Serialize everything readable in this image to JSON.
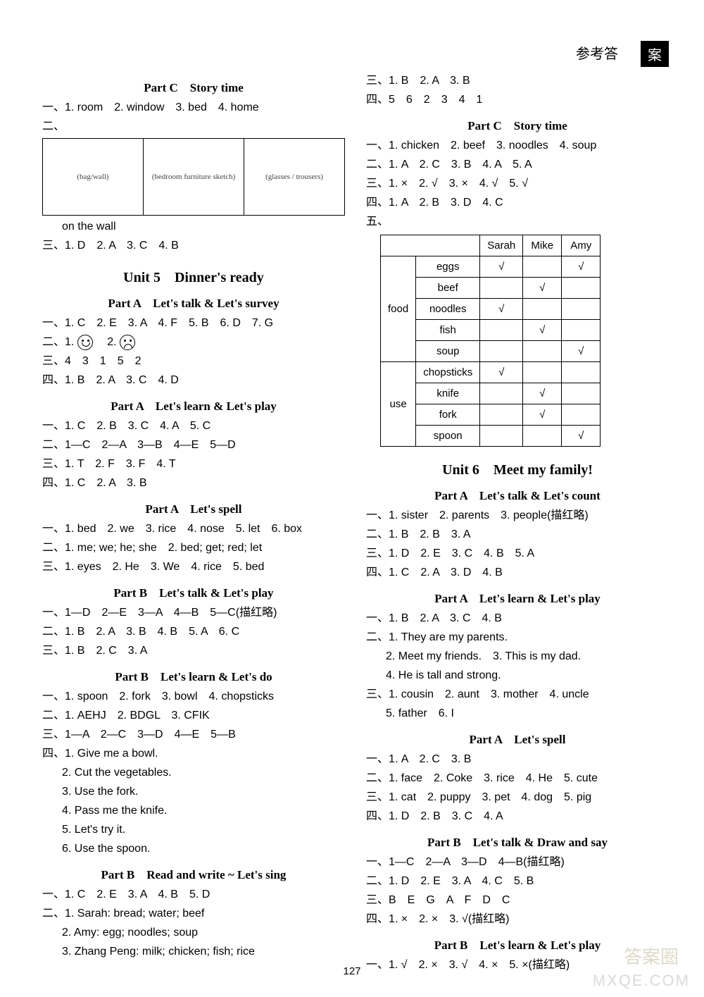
{
  "header": {
    "prefix": "参考答",
    "boxed": "案"
  },
  "page_number": "127",
  "watermark1": "MXQE.COM",
  "watermark2": "答案圈",
  "left": {
    "s1_heading": "Part C　Story time",
    "s1_l1": "一、1. room　2. window　3. bed　4. home",
    "s1_l2": "二、",
    "s1_img_cells": [
      "(bag/wall)",
      "(bedroom furniture sketch)",
      "(glasses / trousers)"
    ],
    "s1_caption": "on the wall",
    "s1_l3": "三、1. D　2. A　3. C　4. B",
    "u5_heading": "Unit 5　Dinner's ready",
    "pa1_heading": "Part A　Let's talk & Let's survey",
    "pa1_l1": "一、1. C　2. E　3. A　4. F　5. B　6. D　7. G",
    "pa1_l2a": "二、1. ",
    "pa1_l2b": "　2. ",
    "pa1_l3": "三、4　3　1　5　2",
    "pa1_l4": "四、1. B　2. A　3. C　4. D",
    "pa2_heading": "Part A　Let's learn & Let's play",
    "pa2_l1": "一、1. C　2. B　3. C　4. A　5. C",
    "pa2_l2": "二、1—C　2—A　3—B　4—E　5—D",
    "pa2_l3": "三、1. T　2. F　3. F　4. T",
    "pa2_l4": "四、1. C　2. A　3. B",
    "pa3_heading": "Part A　Let's spell",
    "pa3_l1": "一、1. bed　2. we　3. rice　4. nose　5. let　6. box",
    "pa3_l2": "二、1. me; we; he; she　2. bed; get; red; let",
    "pa3_l3": "三、1. eyes　2. He　3. We　4. rice　5. bed",
    "pb1_heading": "Part B　Let's talk & Let's play",
    "pb1_l1": "一、1—D　2—E　3—A　4—B　5—C(描红略)",
    "pb1_l2": "二、1. B　2. A　3. B　4. B　5. A　6. C",
    "pb1_l3": "三、1. B　2. C　3. A",
    "pb2_heading": "Part B　Let's learn & Let's do",
    "pb2_l1": "一、1. spoon　2. fork　3. bowl　4. chopsticks",
    "pb2_l2": "二、1. AEHJ　2. BDGL　3. CFIK",
    "pb2_l3": "三、1—A　2—C　3—D　4—E　5—B",
    "pb2_l4": "四、1. Give me a bowl.",
    "pb2_l5": "2. Cut the vegetables.",
    "pb2_l6": "3. Use the fork.",
    "pb2_l7": "4. Pass me the knife.",
    "pb2_l8": "5. Let's try it.",
    "pb2_l9": "6. Use the spoon.",
    "pb3_heading": "Part B　Read and write ~ Let's sing",
    "pb3_l1": "一、1. C　2. E　3. A　4. B　5. D",
    "pb3_l2": "二、1. Sarah: bread; water; beef",
    "pb3_l3": "2. Amy: egg; noodles; soup",
    "pb3_l4": "3. Zhang Peng: milk; chicken; fish; rice"
  },
  "right": {
    "r0_l1": "三、1. B　2. A　3. B",
    "r0_l2": "四、5　6　2　3　4　1",
    "pc_heading": "Part C　Story time",
    "pc_l1": "一、1. chicken　2. beef　3. noodles　4. soup",
    "pc_l2": "二、1. A　2. C　3. B　4. A　5. A",
    "pc_l3": "三、1. ×　2. √　3. ×　4. √　5. √",
    "pc_l4": "四、1. A　2. B　3. D　4. C",
    "pc_l5": "五、",
    "table": {
      "cols": [
        "",
        "",
        "Sarah",
        "Mike",
        "Amy"
      ],
      "groups": [
        {
          "label": "food",
          "rows": [
            {
              "name": "eggs",
              "v": [
                "√",
                "",
                "√"
              ]
            },
            {
              "name": "beef",
              "v": [
                "",
                "√",
                ""
              ]
            },
            {
              "name": "noodles",
              "v": [
                "√",
                "",
                ""
              ]
            },
            {
              "name": "fish",
              "v": [
                "",
                "√",
                ""
              ]
            },
            {
              "name": "soup",
              "v": [
                "",
                "",
                "√"
              ]
            }
          ]
        },
        {
          "label": "use",
          "rows": [
            {
              "name": "chopsticks",
              "v": [
                "√",
                "",
                ""
              ]
            },
            {
              "name": "knife",
              "v": [
                "",
                "√",
                ""
              ]
            },
            {
              "name": "fork",
              "v": [
                "",
                "√",
                ""
              ]
            },
            {
              "name": "spoon",
              "v": [
                "",
                "",
                "√"
              ]
            }
          ]
        }
      ]
    },
    "u6_heading": "Unit 6　Meet my family!",
    "ra1_heading": "Part A　Let's talk & Let's count",
    "ra1_l1": "一、1. sister　2. parents　3. people(描红略)",
    "ra1_l2": "二、1. B　2. B　3. A",
    "ra1_l3": "三、1. D　2. E　3. C　4. B　5. A",
    "ra1_l4": "四、1. C　2. A　3. D　4. B",
    "ra2_heading": "Part A　Let's learn & Let's play",
    "ra2_l1": "一、1. B　2. A　3. C　4. B",
    "ra2_l2": "二、1. They are my parents.",
    "ra2_l3": "2. Meet my friends.　3. This is my dad.",
    "ra2_l4": "4. He is tall and strong.",
    "ra2_l5": "三、1. cousin　2. aunt　3. mother　4. uncle",
    "ra2_l6": "5. father　6. I",
    "ra3_heading": "Part A　Let's spell",
    "ra3_l1": "一、1. A　2. C　3. B",
    "ra3_l2": "二、1. face　2. Coke　3. rice　4. He　5. cute",
    "ra3_l3": "三、1. cat　2. puppy　3. pet　4. dog　5. pig",
    "ra3_l4": "四、1. D　2. B　3. C　4. A",
    "rb1_heading": "Part B　Let's talk & Draw and say",
    "rb1_l1": "一、1—C　2—A　3—D　4—B(描红略)",
    "rb1_l2": "二、1. D　2. E　3. A　4. C　5. B",
    "rb1_l3": "三、B　E　G　A　F　D　C",
    "rb1_l4": "四、1. ×　2. ×　3. √(描红略)",
    "rb2_heading": "Part B　Let's learn & Let's play",
    "rb2_l1": "一、1. √　2. ×　3. √　4. ×　5. ×(描红略)"
  }
}
